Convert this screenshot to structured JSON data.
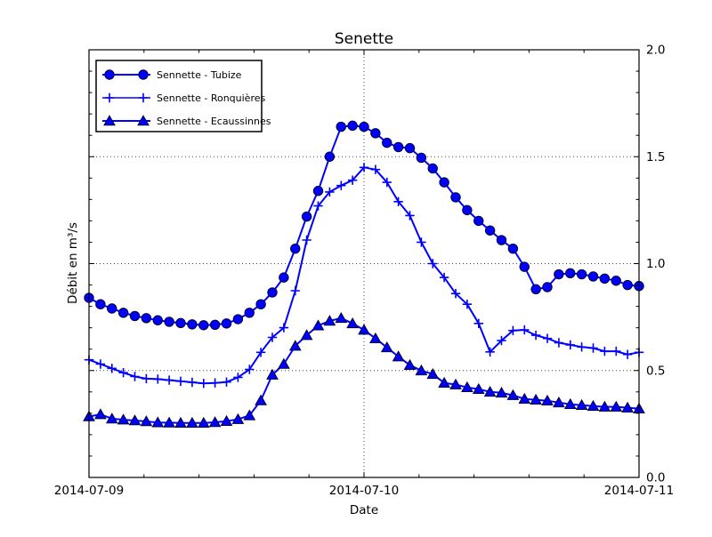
{
  "title": "Senette",
  "chart_data": {
    "type": "line",
    "title": "Senette",
    "xlabel": "Date",
    "ylabel": "Débit en m³/s",
    "x_tick_labels": [
      "2014-07-09",
      "2014-07-10",
      "2014-07-11"
    ],
    "y_tick_labels": [
      "0.0",
      "0.5",
      "1.0",
      "1.5",
      "2.0"
    ],
    "ylim": [
      0.0,
      2.0
    ],
    "x_range_hours": [
      0,
      48
    ],
    "x_sample_step_hours": 1,
    "grid": {
      "style": "dotted",
      "y_lines": [
        0.5,
        1.0,
        1.5
      ],
      "x_lines_at_hours": [
        24
      ]
    },
    "legend_position": "upper-left",
    "line_color": "#0000ff",
    "marker_edge_color": "#000033",
    "series": [
      {
        "name": "Sennette - Tubize",
        "marker": "circle",
        "values": [
          0.84,
          0.81,
          0.79,
          0.77,
          0.755,
          0.745,
          0.735,
          0.728,
          0.722,
          0.716,
          0.712,
          0.714,
          0.72,
          0.74,
          0.77,
          0.81,
          0.865,
          0.935,
          1.07,
          1.22,
          1.34,
          1.5,
          1.64,
          1.645,
          1.64,
          1.61,
          1.565,
          1.545,
          1.54,
          1.495,
          1.445,
          1.38,
          1.31,
          1.25,
          1.2,
          1.155,
          1.11,
          1.07,
          0.985,
          0.88,
          0.89,
          0.95,
          0.955,
          0.95,
          0.94,
          0.93,
          0.92,
          0.9,
          0.895
        ]
      },
      {
        "name": "Sennette - Ronquières",
        "marker": "plus",
        "values": [
          0.55,
          0.53,
          0.51,
          0.49,
          0.472,
          0.462,
          0.46,
          0.455,
          0.45,
          0.445,
          0.44,
          0.442,
          0.446,
          0.468,
          0.505,
          0.585,
          0.655,
          0.7,
          0.873,
          1.11,
          1.27,
          1.335,
          1.365,
          1.39,
          1.45,
          1.44,
          1.38,
          1.29,
          1.225,
          1.1,
          1.0,
          0.935,
          0.86,
          0.81,
          0.72,
          0.587,
          0.64,
          0.687,
          0.69,
          0.665,
          0.65,
          0.63,
          0.62,
          0.61,
          0.605,
          0.59,
          0.59,
          0.575,
          0.585
        ]
      },
      {
        "name": "Sennette - Ecaussinnes",
        "marker": "triangle",
        "values": [
          0.285,
          0.295,
          0.275,
          0.27,
          0.266,
          0.262,
          0.257,
          0.256,
          0.255,
          0.255,
          0.255,
          0.258,
          0.263,
          0.272,
          0.29,
          0.36,
          0.48,
          0.53,
          0.615,
          0.665,
          0.71,
          0.732,
          0.745,
          0.72,
          0.69,
          0.65,
          0.608,
          0.565,
          0.525,
          0.5,
          0.483,
          0.442,
          0.434,
          0.421,
          0.413,
          0.4,
          0.396,
          0.384,
          0.367,
          0.363,
          0.359,
          0.35,
          0.342,
          0.338,
          0.334,
          0.33,
          0.33,
          0.326,
          0.322
        ]
      }
    ]
  }
}
